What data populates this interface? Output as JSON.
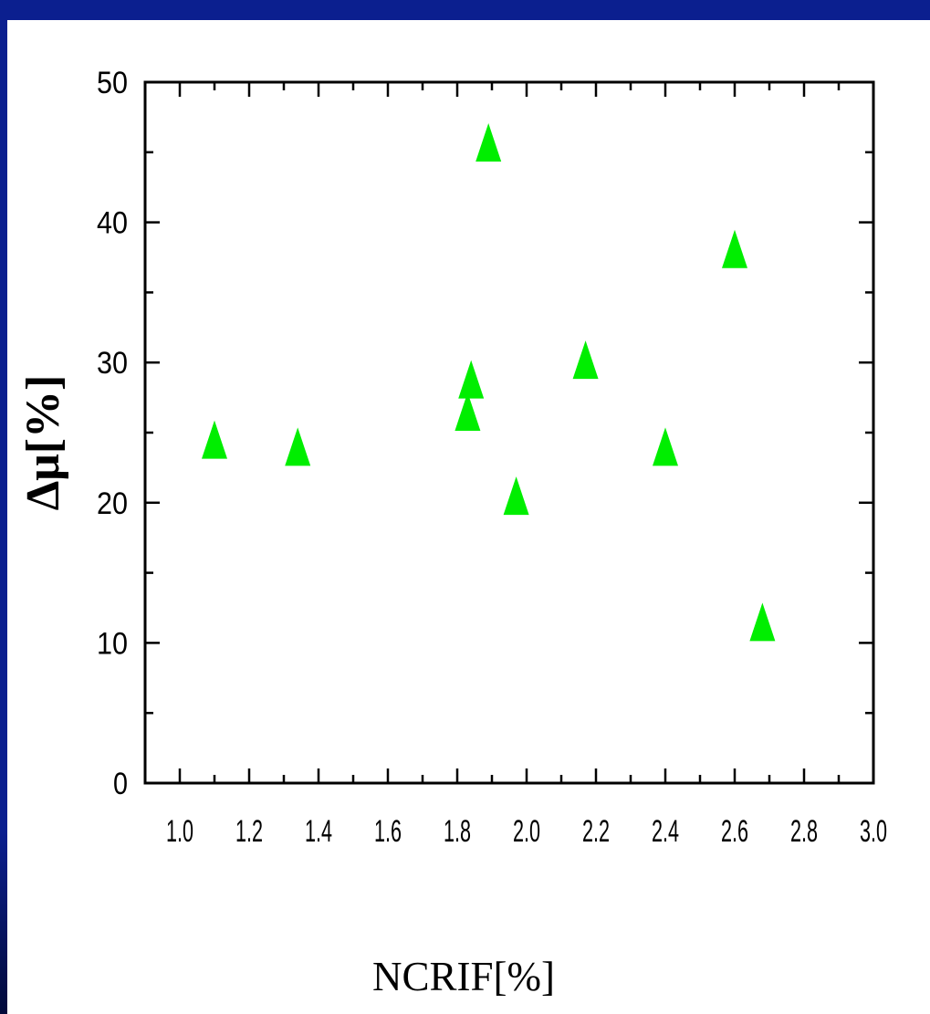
{
  "chart_data": {
    "type": "scatter",
    "title": "",
    "xlabel": "NCRIF[%]",
    "ylabel": "Δμ[%]",
    "xlim": [
      0.9,
      3.0
    ],
    "ylim": [
      0,
      50
    ],
    "x_ticks": [
      "1.0",
      "1.2",
      "1.4",
      "1.6",
      "1.8",
      "2.0",
      "2.2",
      "2.4",
      "2.6",
      "2.8",
      "3.0"
    ],
    "y_ticks": [
      "0",
      "10",
      "20",
      "30",
      "40",
      "50"
    ],
    "grid": false,
    "marker": "triangle",
    "marker_color": "#00ee00",
    "series": [
      {
        "points": [
          {
            "x": 1.1,
            "y": 24.5
          },
          {
            "x": 1.34,
            "y": 24.0
          },
          {
            "x": 1.83,
            "y": 26.5
          },
          {
            "x": 1.84,
            "y": 28.8
          },
          {
            "x": 1.89,
            "y": 45.7
          },
          {
            "x": 1.97,
            "y": 20.5
          },
          {
            "x": 2.17,
            "y": 30.2
          },
          {
            "x": 2.4,
            "y": 24.0
          },
          {
            "x": 2.6,
            "y": 38.1
          },
          {
            "x": 2.68,
            "y": 11.5
          }
        ]
      }
    ]
  }
}
